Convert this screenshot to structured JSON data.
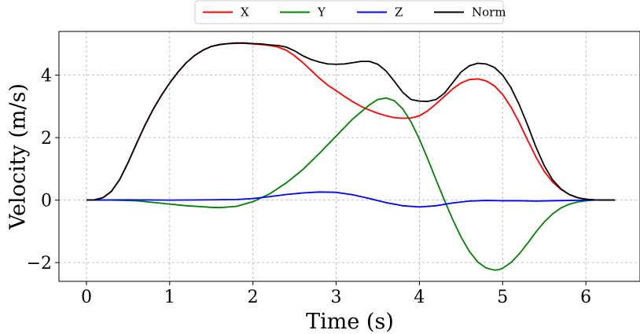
{
  "chart_data": {
    "type": "line",
    "xlabel": "Time (s)",
    "ylabel": "Velocity (m/s)",
    "xlim": [
      -0.33,
      6.65
    ],
    "ylim": [
      -2.6,
      5.4
    ],
    "xticks": [
      0,
      1,
      2,
      3,
      4,
      5,
      6
    ],
    "yticks": [
      -2,
      0,
      2,
      4
    ],
    "xtick_labels": [
      "0",
      "1",
      "2",
      "3",
      "4",
      "5",
      "6"
    ],
    "ytick_labels": [
      "−2",
      "0",
      "2",
      "4"
    ],
    "grid": true,
    "legend_position": "top-center",
    "series": [
      {
        "name": "X",
        "color": "#ff0000",
        "x": [
          0,
          0.1,
          0.2,
          0.3,
          0.4,
          0.5,
          0.6,
          0.7,
          0.8,
          0.9,
          1.0,
          1.1,
          1.2,
          1.3,
          1.4,
          1.5,
          1.6,
          1.7,
          1.8,
          1.9,
          2.0,
          2.1,
          2.2,
          2.3,
          2.4,
          2.5,
          2.6,
          2.7,
          2.8,
          2.9,
          3.0,
          3.1,
          3.2,
          3.3,
          3.4,
          3.5,
          3.6,
          3.7,
          3.8,
          3.9,
          4.0,
          4.1,
          4.2,
          4.3,
          4.4,
          4.5,
          4.6,
          4.7,
          4.8,
          4.9,
          5.0,
          5.1,
          5.2,
          5.3,
          5.4,
          5.5,
          5.6,
          5.7,
          5.8,
          5.9,
          6.0,
          6.1,
          6.2,
          6.35
        ],
        "y": [
          0,
          0.01,
          0.08,
          0.28,
          0.66,
          1.2,
          1.8,
          2.38,
          2.9,
          3.35,
          3.75,
          4.1,
          4.4,
          4.63,
          4.8,
          4.92,
          4.98,
          5.01,
          5.02,
          5.02,
          5.0,
          4.98,
          4.95,
          4.9,
          4.8,
          4.62,
          4.4,
          4.15,
          3.9,
          3.68,
          3.5,
          3.32,
          3.15,
          3.0,
          2.88,
          2.78,
          2.7,
          2.64,
          2.62,
          2.63,
          2.7,
          2.86,
          3.08,
          3.32,
          3.56,
          3.75,
          3.86,
          3.88,
          3.82,
          3.66,
          3.38,
          2.98,
          2.48,
          1.92,
          1.38,
          0.92,
          0.58,
          0.34,
          0.18,
          0.08,
          0.03,
          0.01,
          0,
          0
        ]
      },
      {
        "name": "Y",
        "color": "#008000",
        "x": [
          0,
          0.3,
          0.6,
          0.9,
          1.2,
          1.5,
          1.6,
          1.8,
          2.0,
          2.2,
          2.4,
          2.6,
          2.8,
          3.0,
          3.2,
          3.4,
          3.5,
          3.6,
          3.7,
          3.8,
          3.9,
          4.0,
          4.1,
          4.2,
          4.3,
          4.4,
          4.5,
          4.6,
          4.7,
          4.8,
          4.9,
          4.95,
          5.0,
          5.1,
          5.2,
          5.3,
          5.4,
          5.5,
          5.6,
          5.7,
          5.8,
          5.9,
          6.0,
          6.1,
          6.2,
          6.35
        ],
        "y": [
          0,
          0,
          -0.02,
          -0.1,
          -0.18,
          -0.23,
          -0.24,
          -0.2,
          -0.05,
          0.2,
          0.55,
          0.98,
          1.5,
          2.05,
          2.6,
          3.05,
          3.22,
          3.27,
          3.18,
          2.92,
          2.5,
          1.95,
          1.32,
          0.65,
          0.0,
          -0.62,
          -1.18,
          -1.64,
          -1.98,
          -2.17,
          -2.24,
          -2.23,
          -2.18,
          -2.0,
          -1.72,
          -1.38,
          -1.02,
          -0.7,
          -0.44,
          -0.25,
          -0.13,
          -0.06,
          -0.02,
          0,
          0,
          0
        ]
      },
      {
        "name": "Z",
        "color": "#0000ff",
        "x": [
          0,
          0.5,
          1.0,
          1.5,
          1.8,
          2.0,
          2.2,
          2.4,
          2.6,
          2.8,
          3.0,
          3.2,
          3.4,
          3.6,
          3.8,
          4.0,
          4.2,
          4.4,
          4.6,
          4.8,
          5.0,
          5.2,
          5.4,
          5.6,
          5.8,
          6.0,
          6.35
        ],
        "y": [
          0,
          0.01,
          0,
          0.01,
          0.02,
          0.05,
          0.11,
          0.18,
          0.23,
          0.26,
          0.25,
          0.17,
          0.05,
          -0.08,
          -0.18,
          -0.22,
          -0.18,
          -0.09,
          -0.03,
          -0.01,
          -0.02,
          -0.02,
          -0.03,
          -0.02,
          -0.01,
          0,
          0
        ]
      },
      {
        "name": "Norm",
        "color": "#000000",
        "x": [
          0,
          0.1,
          0.2,
          0.3,
          0.4,
          0.5,
          0.6,
          0.7,
          0.8,
          0.9,
          1.0,
          1.1,
          1.2,
          1.3,
          1.4,
          1.5,
          1.6,
          1.7,
          1.8,
          1.9,
          2.0,
          2.1,
          2.2,
          2.3,
          2.4,
          2.5,
          2.6,
          2.7,
          2.8,
          2.9,
          3.0,
          3.1,
          3.2,
          3.3,
          3.4,
          3.5,
          3.6,
          3.7,
          3.8,
          3.9,
          4.0,
          4.1,
          4.2,
          4.3,
          4.4,
          4.5,
          4.6,
          4.7,
          4.8,
          4.9,
          5.0,
          5.1,
          5.2,
          5.3,
          5.4,
          5.5,
          5.6,
          5.7,
          5.8,
          5.9,
          6.0,
          6.1,
          6.2,
          6.35
        ],
        "y": [
          0,
          0.01,
          0.08,
          0.28,
          0.66,
          1.2,
          1.8,
          2.38,
          2.9,
          3.35,
          3.75,
          4.1,
          4.4,
          4.63,
          4.8,
          4.92,
          4.98,
          5.01,
          5.03,
          5.03,
          5.01,
          5.0,
          4.97,
          4.95,
          4.9,
          4.78,
          4.62,
          4.5,
          4.42,
          4.36,
          4.35,
          4.36,
          4.4,
          4.44,
          4.44,
          4.35,
          4.13,
          3.8,
          3.45,
          3.22,
          3.17,
          3.16,
          3.22,
          3.42,
          3.76,
          4.1,
          4.3,
          4.38,
          4.36,
          4.25,
          4.0,
          3.6,
          3.05,
          2.4,
          1.7,
          1.1,
          0.65,
          0.36,
          0.18,
          0.08,
          0.03,
          0.01,
          0,
          0
        ]
      }
    ]
  }
}
